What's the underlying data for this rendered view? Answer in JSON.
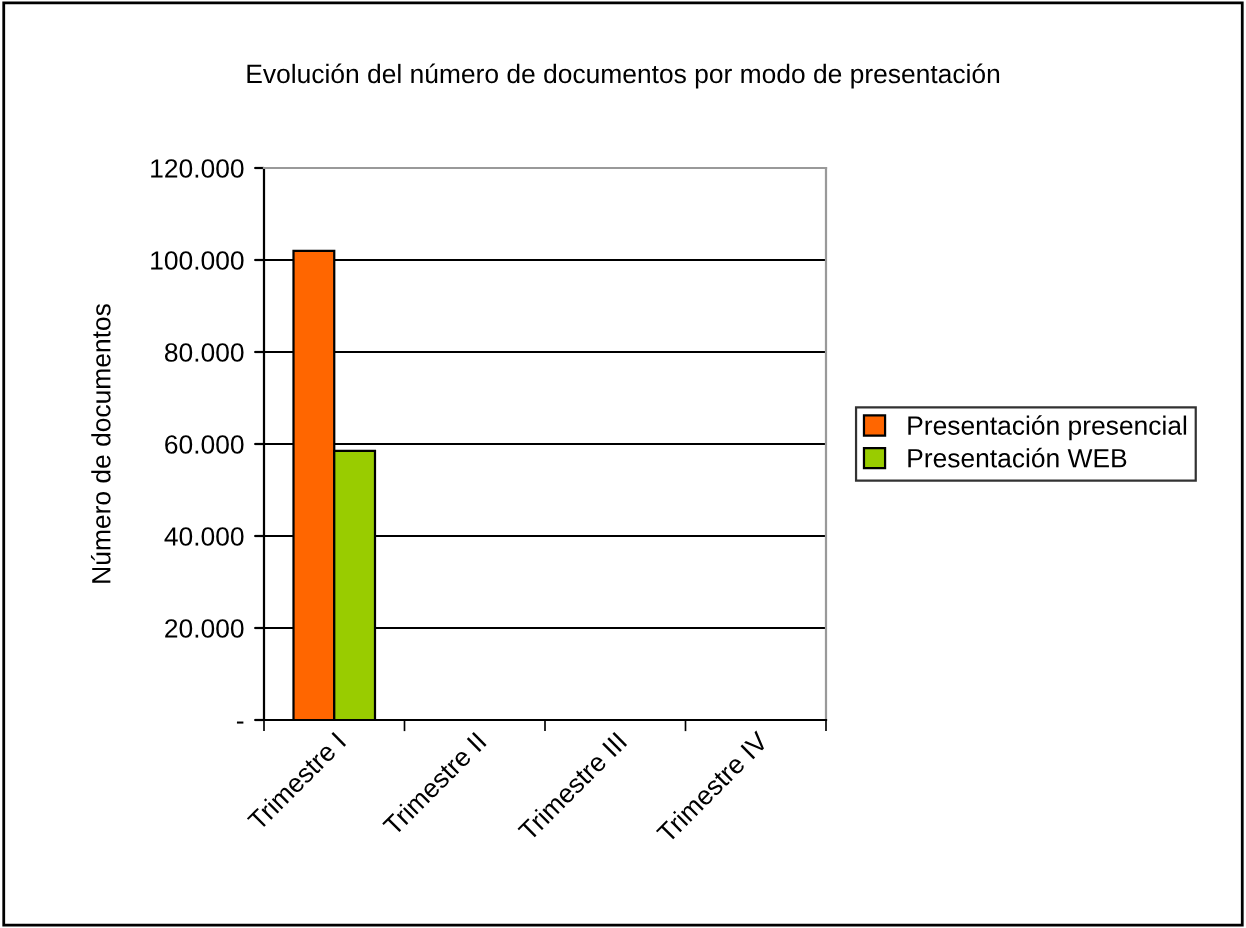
{
  "chart_data": {
    "type": "bar",
    "title": "Evolución del número de documentos por modo de presentación",
    "ylabel": "Número de documentos",
    "categories": [
      "Trimestre I",
      "Trimestre II",
      "Trimestre III",
      "Trimestre IV"
    ],
    "series": [
      {
        "name": "Presentación presencial",
        "color": "#ff6600",
        "values": [
          102000,
          null,
          null,
          null
        ]
      },
      {
        "name": "Presentación WEB",
        "color": "#99cc00",
        "values": [
          58500,
          null,
          null,
          null
        ]
      }
    ],
    "ylim": [
      0,
      120000
    ],
    "yticks": [
      {
        "value": 0,
        "label": "-"
      },
      {
        "value": 20000,
        "label": "20.000"
      },
      {
        "value": 40000,
        "label": "40.000"
      },
      {
        "value": 60000,
        "label": "60.000"
      },
      {
        "value": 80000,
        "label": "80.000"
      },
      {
        "value": 100000,
        "label": "100.000"
      },
      {
        "value": 120000,
        "label": "120.000"
      }
    ],
    "grid": "y",
    "legend": "right"
  }
}
